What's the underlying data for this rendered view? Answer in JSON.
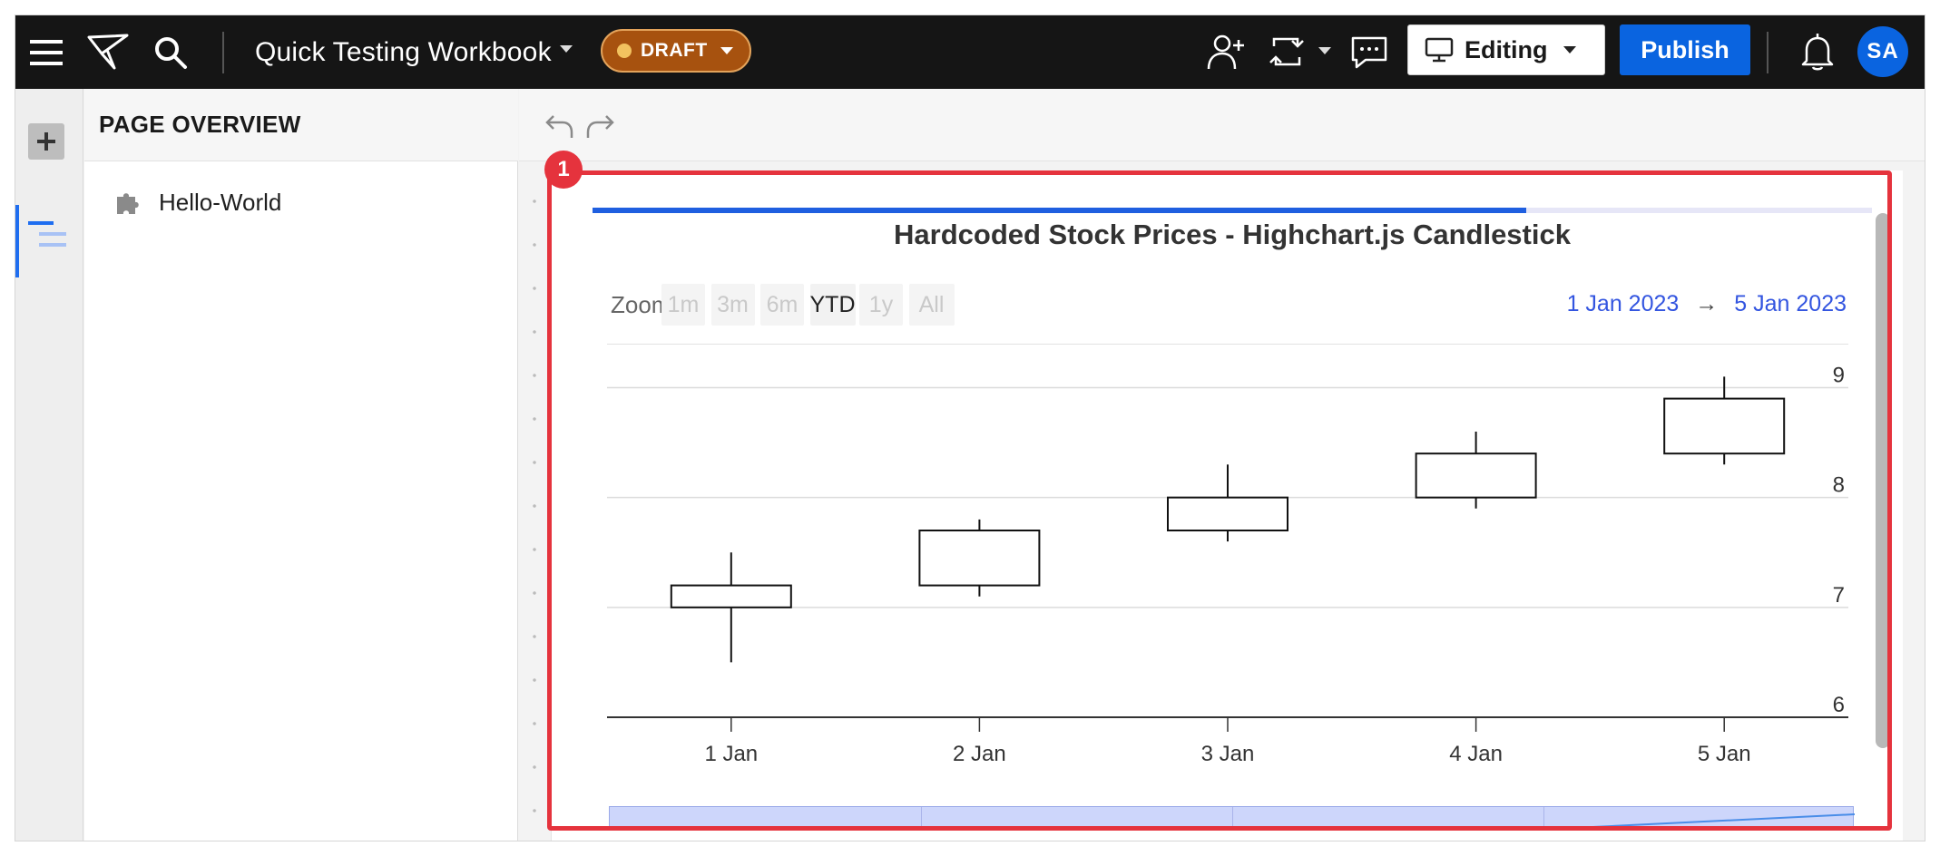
{
  "header": {
    "workbook_title": "Quick Testing Workbook",
    "status_badge": "DRAFT",
    "mode_label": "Editing",
    "publish_label": "Publish",
    "avatar_initials": "SA",
    "icons": [
      "menu-icon",
      "sigma-logo-icon",
      "search-icon",
      "share-user-icon",
      "swap-icon",
      "comment-icon",
      "monitor-icon",
      "bell-icon"
    ],
    "colors": {
      "bar_bg": "#151515",
      "draft_bg": "#a7520f",
      "publish_bg": "#0a64e0"
    }
  },
  "rail": {
    "icons": [
      "add-icon",
      "pages-list-icon"
    ]
  },
  "overview": {
    "heading": "PAGE OVERVIEW",
    "pages": [
      {
        "label": "Hello-World",
        "icon": "puzzle-icon"
      }
    ]
  },
  "canvas": {
    "selection_badge": "1",
    "selection_color": "#e5333d",
    "loading_progress": 0.73
  },
  "chart": {
    "zoom_label": "Zoom",
    "zoom_buttons": [
      {
        "label": "1m",
        "active": false
      },
      {
        "label": "3m",
        "active": false
      },
      {
        "label": "6m",
        "active": false
      },
      {
        "label": "YTD",
        "active": true
      },
      {
        "label": "1y",
        "active": false
      },
      {
        "label": "All",
        "active": false
      }
    ],
    "range_from": "1 Jan 2023",
    "range_arrow": "→",
    "range_to": "5 Jan 2023"
  },
  "chart_data": {
    "type": "candlestick",
    "title": "Hardcoded Stock Prices - Highchart.js Candlestick",
    "xlabel": "",
    "ylabel": "",
    "categories": [
      "1 Jan",
      "2 Jan",
      "3 Jan",
      "4 Jan",
      "5 Jan"
    ],
    "ylim": [
      6,
      9.4
    ],
    "yticks": [
      6,
      7,
      8,
      9
    ],
    "grid": true,
    "y_axis_side": "right",
    "series": [
      {
        "ohlc": [
          {
            "open": 7.0,
            "high": 7.5,
            "low": 6.5,
            "close": 7.2
          },
          {
            "open": 7.2,
            "high": 7.8,
            "low": 7.1,
            "close": 7.7
          },
          {
            "open": 7.7,
            "high": 8.3,
            "low": 7.6,
            "close": 8.0
          },
          {
            "open": 8.0,
            "high": 8.6,
            "low": 7.9,
            "close": 8.4
          },
          {
            "open": 8.4,
            "high": 9.1,
            "low": 8.3,
            "close": 8.9
          }
        ]
      }
    ]
  }
}
